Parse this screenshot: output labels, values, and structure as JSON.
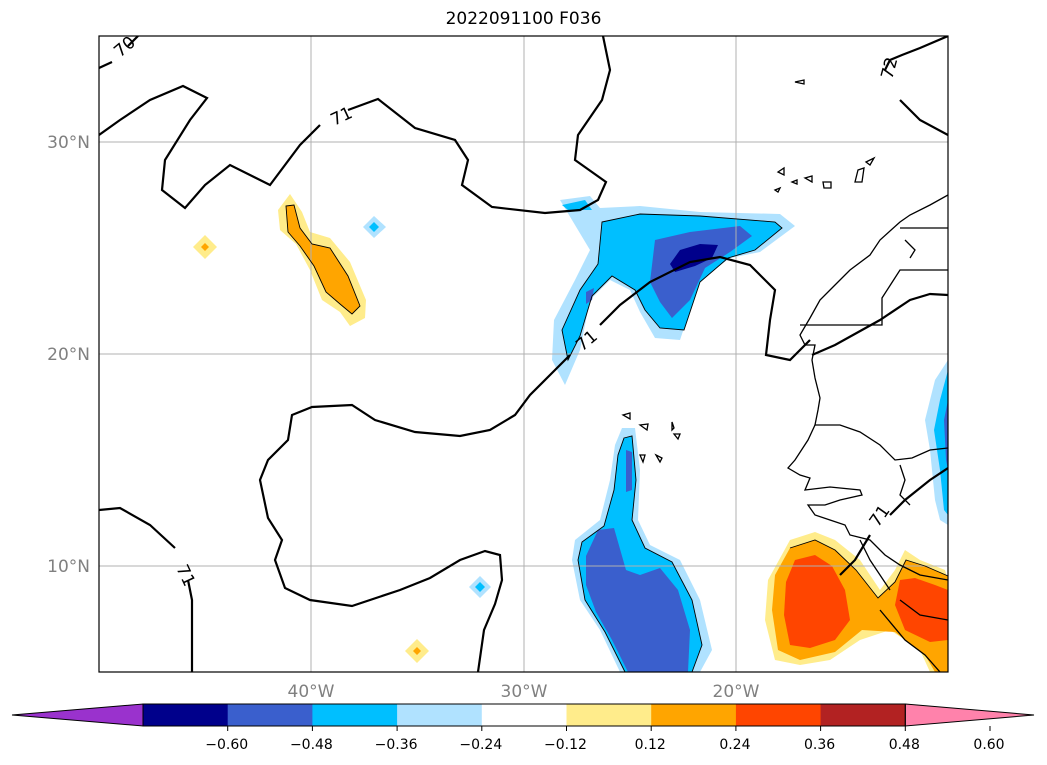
{
  "title": "2022091100 F036",
  "map": {
    "lat_labels": [
      "30°N",
      "20°N",
      "10°N"
    ],
    "lon_labels": [
      "40°W",
      "30°W",
      "20°W"
    ],
    "contour_labels": [
      "70",
      "71",
      "71",
      "72",
      "71",
      "71"
    ]
  },
  "colorbar": {
    "ticks": [
      "−0.60",
      "−0.48",
      "−0.36",
      "−0.24",
      "−0.12",
      "0.12",
      "0.24",
      "0.36",
      "0.48",
      "0.60"
    ],
    "colors": [
      "#9a32cd",
      "#00008b",
      "#3a5fcd",
      "#00bfff",
      "#b0e2ff",
      "#ffffff",
      "#ffec8b",
      "#ffa500",
      "#ff4500",
      "#b22222",
      "#ff82ab"
    ]
  },
  "colors": {
    "land_outline": "#000000",
    "grid": "#b0b0b0",
    "contour": "#000000"
  }
}
